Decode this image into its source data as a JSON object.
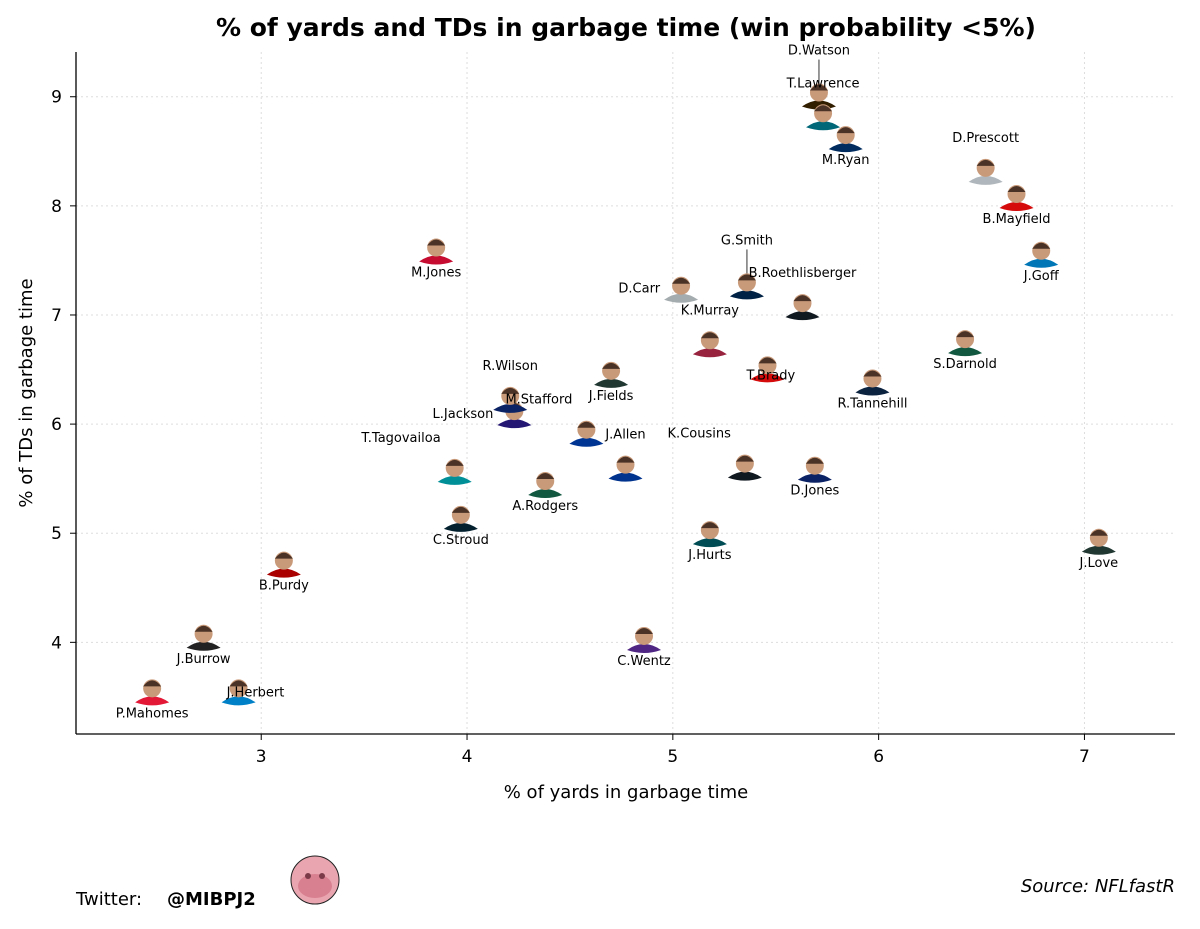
{
  "chart_data": {
    "type": "scatter",
    "title": "% of yards and TDs in garbage time (win probability <5%)",
    "xlabel": "% of yards in garbage time",
    "ylabel": "% of TDs in garbage time",
    "xlim": [
      2.1,
      7.44
    ],
    "ylim": [
      3.16,
      9.41
    ],
    "xticks": [
      3,
      4,
      5,
      6,
      7
    ],
    "yticks": [
      4,
      5,
      6,
      7,
      8,
      9
    ],
    "grid": true,
    "points": [
      {
        "name": "P.Mahomes",
        "x": 2.47,
        "y": 3.56,
        "color": "#E31837",
        "label": "below"
      },
      {
        "name": "J.Burrow",
        "x": 2.72,
        "y": 4.06,
        "color": "#222222",
        "label": "below"
      },
      {
        "name": "J.Herbert",
        "x": 2.89,
        "y": 3.56,
        "color": "#0080C6",
        "label": "right"
      },
      {
        "name": "B.Purdy",
        "x": 3.11,
        "y": 4.73,
        "color": "#AA0000",
        "label": "below"
      },
      {
        "name": "M.Jones",
        "x": 3.85,
        "y": 7.6,
        "color": "#C60C30",
        "label": "below"
      },
      {
        "name": "C.Stroud",
        "x": 3.97,
        "y": 5.15,
        "color": "#03202F",
        "label": "below"
      },
      {
        "name": "T.Tagovailoa",
        "x": 3.94,
        "y": 5.58,
        "color": "#008E97",
        "label": "aboveleft"
      },
      {
        "name": "L.Jackson",
        "x": 4.23,
        "y": 6.1,
        "color": "#241773",
        "label": "left"
      },
      {
        "name": "R.Wilson",
        "x": 4.21,
        "y": 6.24,
        "color": "#0B2265",
        "label": "above"
      },
      {
        "name": "A.Rodgers",
        "x": 4.38,
        "y": 5.46,
        "color": "#125740",
        "label": "below"
      },
      {
        "name": "M.Stafford",
        "x": 4.58,
        "y": 5.93,
        "color": "#003594",
        "label": "aboveleft"
      },
      {
        "name": "J.Allen",
        "x": 4.77,
        "y": 5.61,
        "color": "#00338D",
        "label": "above"
      },
      {
        "name": "J.Fields",
        "x": 4.7,
        "y": 6.47,
        "color": "#203731",
        "label": "below"
      },
      {
        "name": "C.Wentz",
        "x": 4.86,
        "y": 4.04,
        "color": "#4F2683",
        "label": "below"
      },
      {
        "name": "D.Carr",
        "x": 5.04,
        "y": 7.25,
        "color": "#A5ACAF",
        "label": "left"
      },
      {
        "name": "G.Smith",
        "x": 5.36,
        "y": 7.28,
        "color": "#002244",
        "label": "abovefar"
      },
      {
        "name": "K.Murray",
        "x": 5.18,
        "y": 6.75,
        "color": "#97233F",
        "label": "above"
      },
      {
        "name": "B.Roethlisberger",
        "x": 5.63,
        "y": 7.09,
        "color": "#101820",
        "label": "above"
      },
      {
        "name": "T.Brady",
        "x": 5.46,
        "y": 6.52,
        "color": "#D50A0A",
        "label": "belowleft"
      },
      {
        "name": "K.Cousins",
        "x": 5.35,
        "y": 5.62,
        "color": "#101820",
        "label": "aboveleft"
      },
      {
        "name": "J.Hurts",
        "x": 5.18,
        "y": 5.01,
        "color": "#004C54",
        "label": "below"
      },
      {
        "name": "D.Jones",
        "x": 5.69,
        "y": 5.6,
        "color": "#0B2265",
        "label": "below"
      },
      {
        "name": "R.Tannehill",
        "x": 5.97,
        "y": 6.4,
        "color": "#0C2340",
        "label": "below"
      },
      {
        "name": "S.Darnold",
        "x": 6.42,
        "y": 6.76,
        "color": "#125740",
        "label": "below"
      },
      {
        "name": "D.Watson",
        "x": 5.71,
        "y": 9.02,
        "color": "#311D00",
        "label": "abovefar"
      },
      {
        "name": "T.Lawrence",
        "x": 5.73,
        "y": 8.83,
        "color": "#006778",
        "label": "above"
      },
      {
        "name": "M.Ryan",
        "x": 5.84,
        "y": 8.63,
        "color": "#002C5F",
        "label": "below"
      },
      {
        "name": "D.Prescott",
        "x": 6.52,
        "y": 8.33,
        "color": "#B0B7BC",
        "label": "above"
      },
      {
        "name": "B.Mayfield",
        "x": 6.67,
        "y": 8.09,
        "color": "#D50A0A",
        "label": "below"
      },
      {
        "name": "J.Goff",
        "x": 6.79,
        "y": 7.57,
        "color": "#0076B6",
        "label": "below"
      },
      {
        "name": "J.Love",
        "x": 7.07,
        "y": 4.94,
        "color": "#203731",
        "label": "below"
      }
    ]
  },
  "footer": {
    "twitter_prefix": "Twitter: ",
    "twitter_handle": "@MIBPJ2",
    "source": "Source: NFLfastR"
  }
}
